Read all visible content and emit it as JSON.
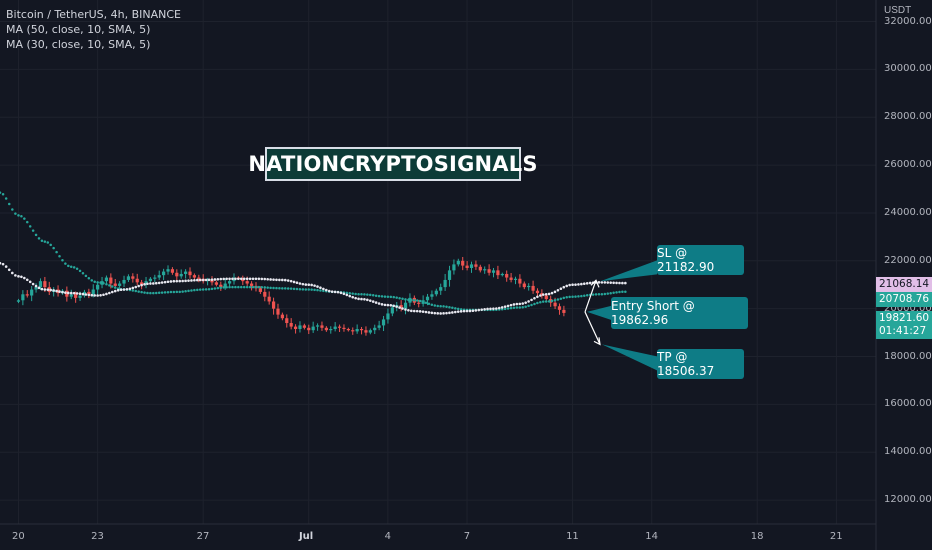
{
  "legend": {
    "symbol_line": "Bitcoin / TetherUS, 4h, BINANCE",
    "ma50_line": "MA (50, close, 10, SMA, 5)",
    "ma30_line": "MA (30, close, 10, SMA, 5)"
  },
  "watermark": "NATIONCRYPTOSIGNALS",
  "currency": "USDT",
  "annotations": {
    "sl": "SL @ 21182.90",
    "entry": "Entry Short @ 19862.96",
    "tp": "TP @ 18506.37"
  },
  "price_tags": {
    "ma_white": "21068.14",
    "ma_green": "20708.76",
    "last_price": "19821.60",
    "countdown": "01:41:27"
  },
  "colors": {
    "up": "#26a69a",
    "down": "#ef5350",
    "ma_white": "#e8e8f0",
    "ma_green": "#26a69a",
    "callout": "#0e7c86",
    "background": "#131722"
  },
  "chart_data": {
    "type": "candlestick",
    "title": "Bitcoin / TetherUS, 4h, BINANCE",
    "y_ticks": [
      12000,
      14000,
      16000,
      18000,
      20000,
      22000,
      24000,
      26000,
      28000,
      30000,
      32000
    ],
    "y_tick_labels": [
      "12000.00",
      "14000.00",
      "16000.00",
      "18000.00",
      "20000.00",
      "22000.00",
      "24000.00",
      "26000.00",
      "28000.00",
      "30000.00",
      "32000.00"
    ],
    "ylim": [
      11000,
      32900
    ],
    "x_ticks": [
      "20",
      "23",
      "27",
      "Jul",
      "4",
      "7",
      "11",
      "14",
      "18",
      "21"
    ],
    "x_tick_days": [
      0,
      3,
      7,
      11,
      14,
      17,
      21,
      24,
      28,
      31
    ],
    "xlim_days": [
      -0.7,
      32.5
    ],
    "candle_days_per_bar": 0.1667,
    "close_series": [
      20350,
      20600,
      20550,
      20800,
      20900,
      21150,
      20900,
      20700,
      20800,
      20650,
      20750,
      20500,
      20600,
      20450,
      20550,
      20700,
      20600,
      20800,
      21000,
      21150,
      21300,
      21050,
      20950,
      21050,
      21200,
      21350,
      21250,
      21100,
      21000,
      21150,
      21250,
      21300,
      21400,
      21550,
      21650,
      21500,
      21350,
      21450,
      21550,
      21400,
      21300,
      21250,
      21150,
      21200,
      21100,
      21000,
      20900,
      21050,
      21150,
      21300,
      21250,
      21150,
      21050,
      20950,
      20850,
      20700,
      20500,
      20300,
      20000,
      19750,
      19600,
      19400,
      19250,
      19150,
      19300,
      19200,
      19100,
      19250,
      19300,
      19200,
      19100,
      19150,
      19250,
      19200,
      19150,
      19100,
      19050,
      19150,
      19100,
      19000,
      19100,
      19200,
      19300,
      19550,
      19800,
      20050,
      20150,
      20000,
      20250,
      20450,
      20250,
      20200,
      20350,
      20500,
      20600,
      20750,
      20900,
      21200,
      21600,
      21850,
      22000,
      21800,
      21700,
      21850,
      21750,
      21600,
      21650,
      21500,
      21600,
      21400,
      21450,
      21300,
      21200,
      21250,
      21050,
      20900,
      20950,
      20750,
      20650,
      20550,
      20400,
      20250,
      20100,
      19950,
      19821.6
    ],
    "ma_white": {
      "name": "MA (30, close, 10, SMA, 5)",
      "points": [
        [
          -0.7,
          21900
        ],
        [
          0,
          21350
        ],
        [
          1,
          20800
        ],
        [
          2,
          20650
        ],
        [
          3,
          20550
        ],
        [
          4,
          20800
        ],
        [
          5,
          21050
        ],
        [
          6,
          21150
        ],
        [
          7,
          21200
        ],
        [
          8,
          21250
        ],
        [
          9,
          21250
        ],
        [
          10,
          21200
        ],
        [
          11,
          21000
        ],
        [
          12,
          20700
        ],
        [
          13,
          20400
        ],
        [
          14,
          20150
        ],
        [
          15,
          19900
        ],
        [
          16,
          19800
        ],
        [
          17,
          19900
        ],
        [
          18,
          20000
        ],
        [
          19,
          20200
        ],
        [
          20,
          20600
        ],
        [
          21,
          21000
        ],
        [
          22,
          21100
        ],
        [
          23,
          21068
        ]
      ]
    },
    "ma_green": {
      "name": "MA (50, close, 10, SMA, 5)",
      "points": [
        [
          -0.7,
          24850
        ],
        [
          0,
          23900
        ],
        [
          1,
          22800
        ],
        [
          2,
          21750
        ],
        [
          3,
          21100
        ],
        [
          4,
          20800
        ],
        [
          5,
          20650
        ],
        [
          6,
          20700
        ],
        [
          7,
          20800
        ],
        [
          8,
          20900
        ],
        [
          9,
          20900
        ],
        [
          10,
          20850
        ],
        [
          11,
          20800
        ],
        [
          12,
          20700
        ],
        [
          13,
          20600
        ],
        [
          14,
          20500
        ],
        [
          15,
          20350
        ],
        [
          16,
          20100
        ],
        [
          17,
          19950
        ],
        [
          18,
          19950
        ],
        [
          19,
          20050
        ],
        [
          20,
          20300
        ],
        [
          21,
          20500
        ],
        [
          22,
          20600
        ],
        [
          23,
          20709
        ]
      ]
    },
    "levels": {
      "sl": 21182.9,
      "entry": 19862.96,
      "tp": 18506.37
    }
  }
}
